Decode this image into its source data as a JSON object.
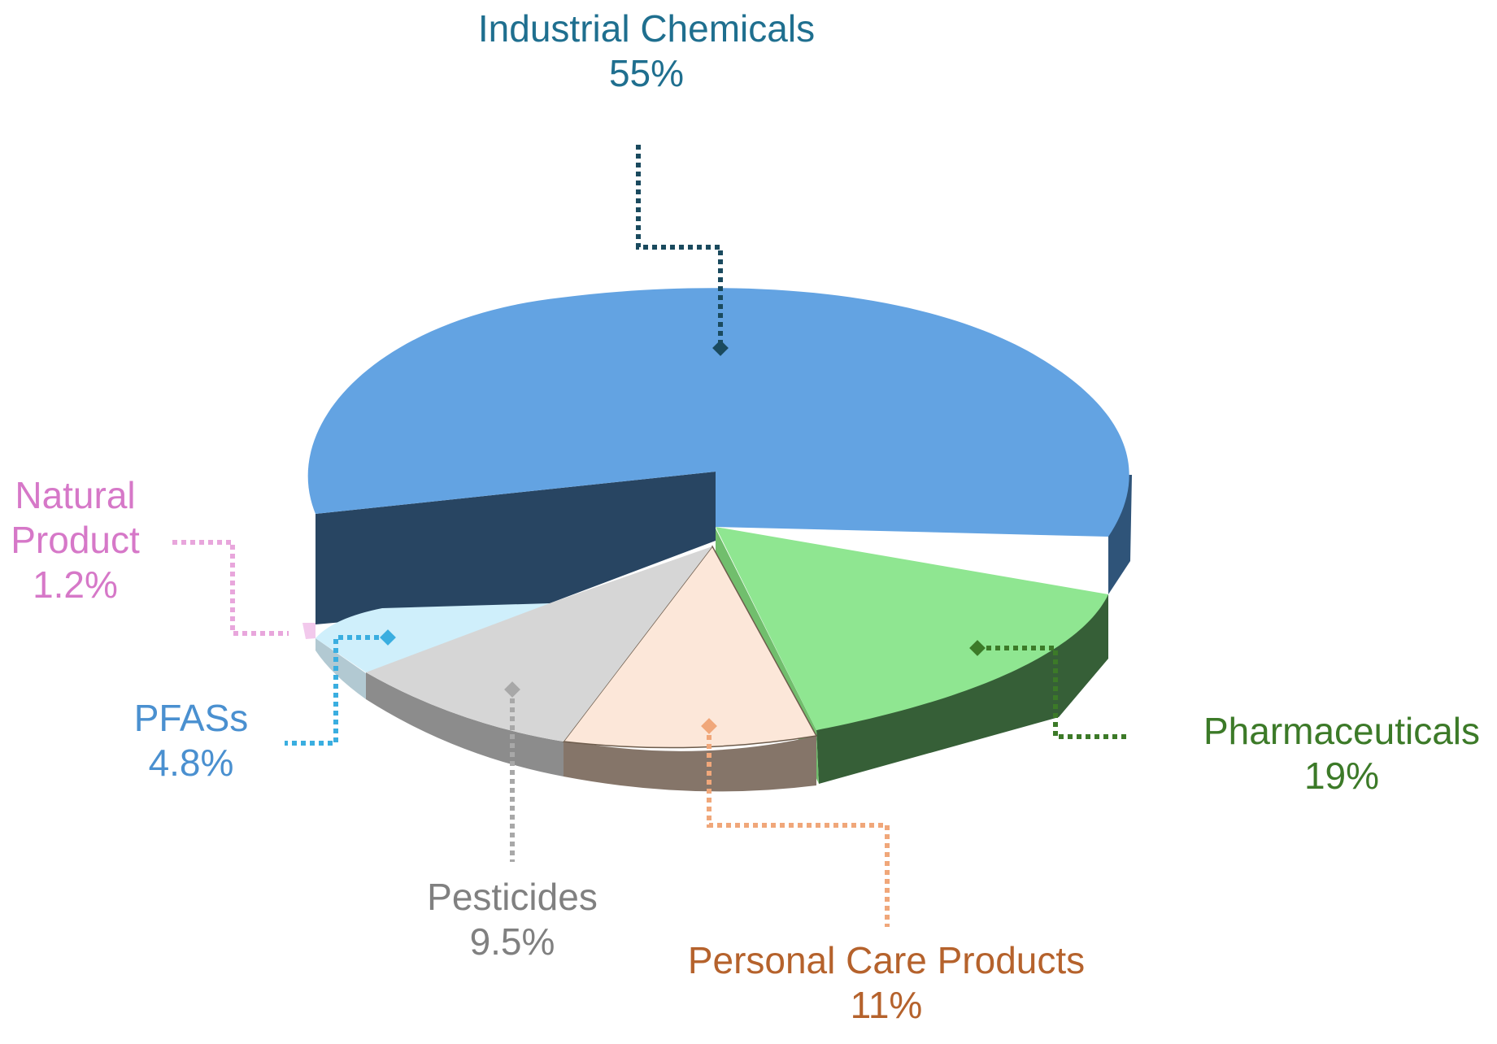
{
  "chart_data": {
    "type": "pie",
    "style": "3d",
    "title": "",
    "slices": [
      {
        "key": "industrial",
        "name": "Industrial Chemicals",
        "value": 55,
        "value_label": "55%",
        "color": "#63A3E2",
        "label_color": "#1F6F8F"
      },
      {
        "key": "pharma",
        "name": "Pharmaceuticals",
        "value": 19,
        "value_label": "19%",
        "color": "#8FE691",
        "label_color": "#3C7A28"
      },
      {
        "key": "personal",
        "name": "Personal Care Products",
        "value": 11,
        "value_label": "11%",
        "color": "#FCE7D9",
        "label_color": "#B5622C"
      },
      {
        "key": "pesticides",
        "name": "Pesticides",
        "value": 9.5,
        "value_label": "9.5%",
        "color": "#D6D6D6",
        "label_color": "#808080"
      },
      {
        "key": "pfas",
        "name": "PFASs",
        "value": 4.8,
        "value_label": "4.8%",
        "color": "#CFEFFB",
        "label_color": "#4A90D0"
      },
      {
        "key": "natural",
        "name": "Natural Product",
        "name_lines": [
          "Natural",
          "Product"
        ],
        "value": 1.2,
        "value_label": "1.2%",
        "color": "#F2C9EC",
        "label_color": "#D678C8"
      }
    ],
    "leader_colors": {
      "industrial": "#1A4A5E",
      "pharma": "#3C7A28",
      "personal": "#F0A77A",
      "pesticides": "#A8A8A8",
      "pfas": "#3AAEE0",
      "natural": "#E8A6DC"
    }
  }
}
